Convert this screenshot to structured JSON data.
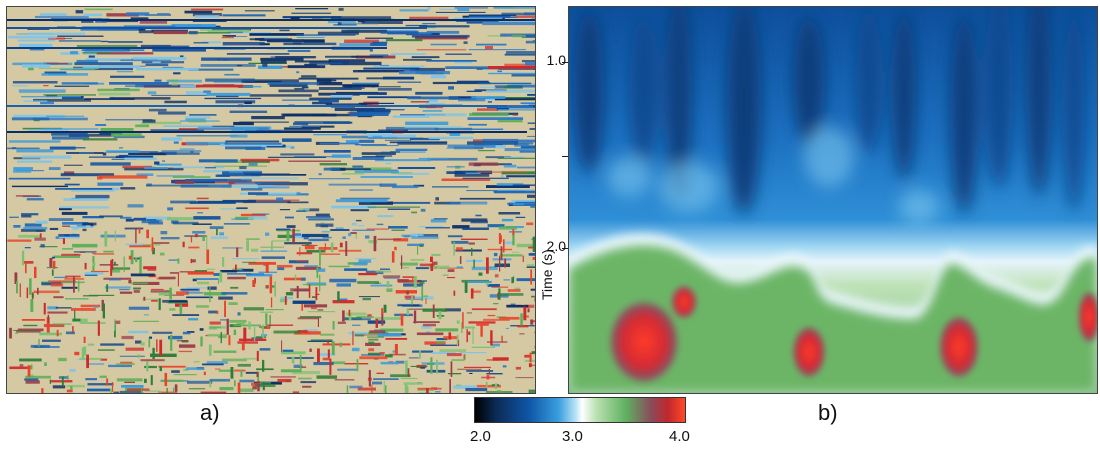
{
  "panels": {
    "a": {
      "caption": "a)"
    },
    "b": {
      "caption": "b)"
    }
  },
  "time_axis": {
    "title": "Time (s)",
    "tick_labels": [
      "1.0",
      "2.0"
    ]
  },
  "colorbar": {
    "min_label": "2.0",
    "mid_label": "3.0",
    "max_label": "4.0",
    "colors": {
      "black": "#000000",
      "dark_blue": "#0b2a55",
      "blue": "#0f57a8",
      "light_blue": "#3aa0df",
      "white": "#ffffff",
      "green": "#5fb060",
      "red": "#c1272d",
      "orange_red": "#ff4a2a"
    }
  },
  "panel_a_background": "#d4c9a2"
}
